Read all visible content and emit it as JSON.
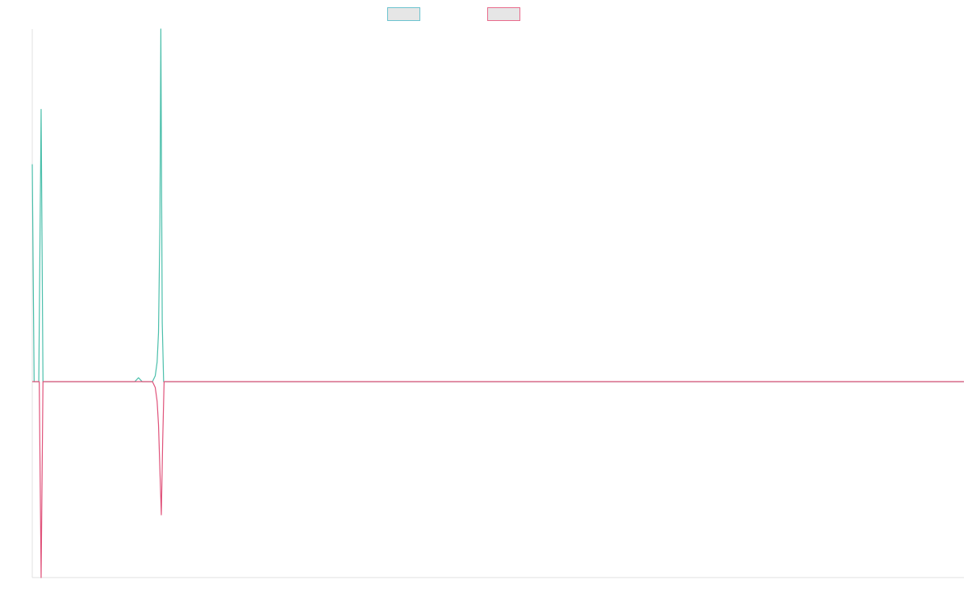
{
  "chart_data": {
    "type": "line",
    "title": "",
    "xlabel": "",
    "ylabel": "",
    "grid": false,
    "legend_position": "top-center",
    "xlim": [
      0,
      100
    ],
    "ylim": [
      -100,
      180
    ],
    "series": [
      {
        "color": "#4bbfab",
        "legend_fill": "#e6e6e6",
        "legend_border": "#6cc3cf",
        "points": [
          [
            0.0,
            111
          ],
          [
            0.2,
            0
          ],
          [
            0.7,
            0
          ],
          [
            0.95,
            139
          ],
          [
            1.15,
            0
          ],
          [
            11.0,
            0
          ],
          [
            11.4,
            2
          ],
          [
            11.8,
            0
          ],
          [
            12.9,
            0
          ],
          [
            13.2,
            3
          ],
          [
            13.4,
            10
          ],
          [
            13.55,
            25
          ],
          [
            13.7,
            80
          ],
          [
            13.8,
            180
          ],
          [
            13.95,
            30
          ],
          [
            14.1,
            0
          ],
          [
            100,
            0
          ]
        ]
      },
      {
        "color": "#e0527a",
        "legend_fill": "#e6e6e6",
        "legend_border": "#e86b8c",
        "points": [
          [
            0.0,
            0
          ],
          [
            0.75,
            0
          ],
          [
            0.95,
            -100
          ],
          [
            1.15,
            0
          ],
          [
            12.9,
            0
          ],
          [
            13.2,
            -3
          ],
          [
            13.4,
            -10
          ],
          [
            13.55,
            -22
          ],
          [
            13.7,
            -45
          ],
          [
            13.85,
            -68
          ],
          [
            14.0,
            -30
          ],
          [
            14.15,
            0
          ],
          [
            100,
            0
          ]
        ]
      }
    ]
  }
}
